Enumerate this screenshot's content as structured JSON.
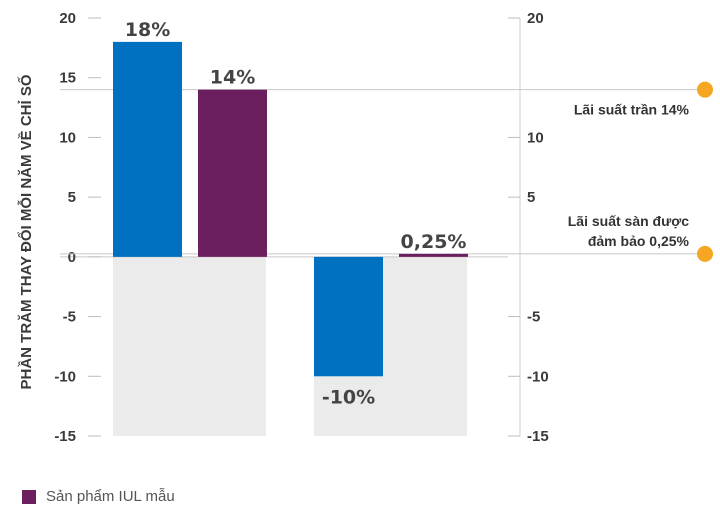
{
  "chart_data": {
    "type": "bar",
    "ylabel": "PHẦN TRĂM THAY ĐỔI MỖI NĂM VỀ CHỈ SỐ",
    "ylim": [
      -15,
      20
    ],
    "left_ticks": [
      "20",
      "15",
      "10",
      "5",
      "0",
      "-5",
      "-10",
      "-15"
    ],
    "right_ticks": [
      "20",
      "10",
      "5",
      "-5",
      "-10",
      "-15"
    ],
    "grid": false,
    "groups": [
      {
        "bars": [
          {
            "value": 18,
            "label": "18%",
            "color": "#0070c0"
          },
          {
            "value": 14,
            "label": "14%",
            "color": "#6b1f5e"
          }
        ]
      },
      {
        "bars": [
          {
            "value": -10,
            "label": "-10%",
            "color": "#0070c0"
          },
          {
            "value": 0.25,
            "label": "0,25%",
            "color": "#6b1f5e"
          }
        ]
      }
    ],
    "annotations": [
      {
        "value": 14,
        "text": [
          "Lãi suất trần 14%"
        ],
        "dot_color": "#f5a623"
      },
      {
        "value": 0.25,
        "text": [
          "Lãi suất sàn được",
          "đảm bảo 0,25%"
        ],
        "dot_color": "#f5a623"
      }
    ],
    "negative_band_color": "#ebebeb",
    "legend": [
      {
        "name": "Sản phẩm IUL mẫu",
        "color": "#6b1f5e"
      }
    ]
  }
}
